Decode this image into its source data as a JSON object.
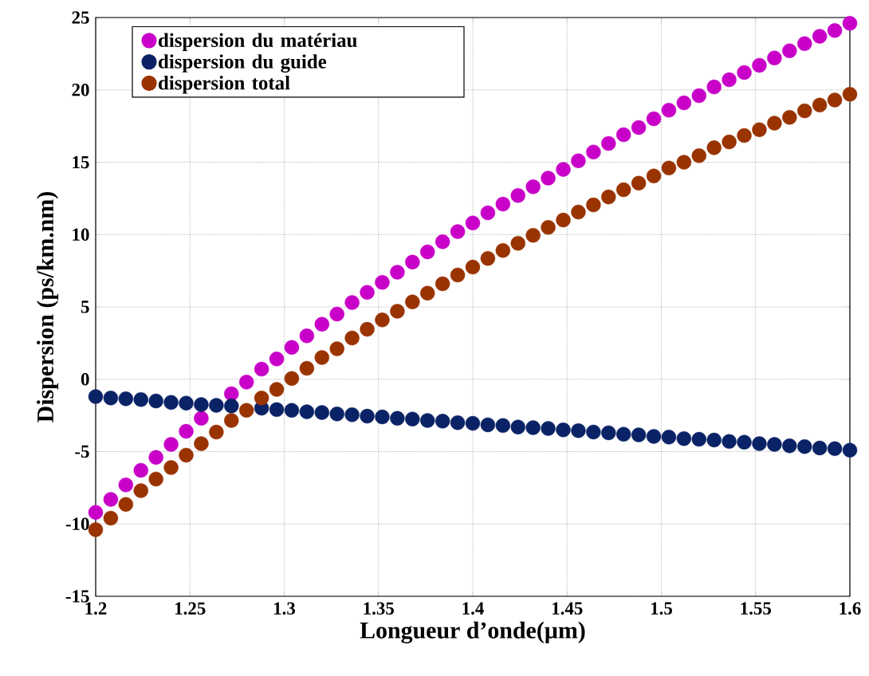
{
  "chart_data": {
    "type": "scatter",
    "xlabel": "Longueur d’onde(µm)",
    "ylabel": "Dispersion (ps/km.nm)",
    "x": [
      1.2,
      1.208,
      1.216,
      1.224,
      1.232,
      1.24,
      1.248,
      1.256,
      1.264,
      1.272,
      1.28,
      1.288,
      1.296,
      1.304,
      1.312,
      1.32,
      1.328,
      1.336,
      1.344,
      1.352,
      1.36,
      1.368,
      1.376,
      1.384,
      1.392,
      1.4,
      1.408,
      1.416,
      1.424,
      1.432,
      1.44,
      1.448,
      1.456,
      1.464,
      1.472,
      1.48,
      1.488,
      1.496,
      1.504,
      1.512,
      1.52,
      1.528,
      1.536,
      1.544,
      1.552,
      1.56,
      1.568,
      1.576,
      1.584,
      1.592,
      1.6
    ],
    "series": [
      {
        "name": "dispersion du matériau",
        "color": "#c800c8",
        "values": [
          -9.2,
          -8.3,
          -7.3,
          -6.3,
          -5.4,
          -4.5,
          -3.6,
          -2.7,
          null,
          -1.0,
          -0.2,
          0.7,
          1.4,
          2.2,
          3.0,
          3.8,
          4.5,
          5.3,
          6.0,
          6.7,
          7.4,
          8.1,
          8.8,
          9.5,
          10.2,
          10.8,
          11.5,
          12.1,
          12.7,
          13.3,
          13.9,
          14.5,
          15.1,
          15.7,
          16.3,
          16.9,
          17.4,
          18.0,
          18.6,
          19.1,
          19.6,
          20.2,
          20.7,
          21.2,
          21.7,
          22.2,
          22.7,
          23.2,
          23.7,
          24.1,
          24.6
        ]
      },
      {
        "name": "dispersion du guide",
        "color": "#0a2266",
        "values": [
          -1.2,
          -1.3,
          -1.35,
          -1.4,
          -1.5,
          -1.6,
          -1.65,
          -1.75,
          -1.8,
          -1.85,
          null,
          -2.0,
          -2.1,
          -2.15,
          -2.25,
          -2.3,
          -2.4,
          -2.45,
          -2.55,
          -2.6,
          -2.7,
          -2.75,
          -2.85,
          -2.9,
          -3.0,
          -3.05,
          -3.15,
          -3.2,
          -3.3,
          -3.35,
          -3.4,
          -3.5,
          -3.55,
          -3.65,
          -3.7,
          -3.8,
          -3.85,
          -3.95,
          -4.0,
          -4.1,
          -4.15,
          -4.2,
          -4.3,
          -4.35,
          -4.45,
          -4.5,
          -4.6,
          -4.65,
          -4.75,
          -4.8,
          -4.9
        ]
      },
      {
        "name": "dispersion total",
        "color": "#993300",
        "values": [
          -10.4,
          -9.6,
          -8.65,
          -7.7,
          -6.9,
          -6.1,
          -5.25,
          -4.45,
          -3.65,
          -2.85,
          -2.15,
          -1.3,
          -0.7,
          0.05,
          0.75,
          1.5,
          2.1,
          2.85,
          3.45,
          4.1,
          4.7,
          5.35,
          5.95,
          6.6,
          7.2,
          7.75,
          8.35,
          8.9,
          9.4,
          9.95,
          10.5,
          11.0,
          11.55,
          12.05,
          12.6,
          13.1,
          13.55,
          14.05,
          14.6,
          15.0,
          15.45,
          16.0,
          16.4,
          16.85,
          17.25,
          17.7,
          18.1,
          18.55,
          18.95,
          19.3,
          19.7
        ]
      }
    ],
    "xlim": [
      1.2,
      1.6
    ],
    "xticks": [
      1.2,
      1.25,
      1.3,
      1.35,
      1.4,
      1.45,
      1.5,
      1.55,
      1.6
    ],
    "ylim": [
      -15,
      25
    ],
    "yticks": [
      -15,
      -10,
      -5,
      0,
      5,
      10,
      15,
      20,
      25
    ],
    "grid": true,
    "legend": "top left",
    "marker": "circle"
  }
}
